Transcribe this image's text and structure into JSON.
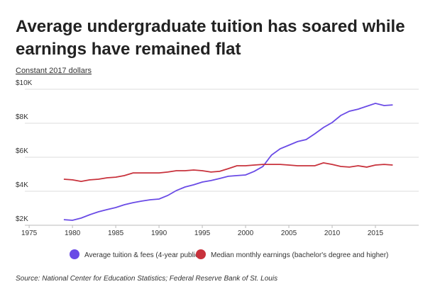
{
  "chart_data": {
    "type": "line",
    "title": "Average undergraduate tuition has soared while earnings have remained flat",
    "subtitle": "Constant 2017 dollars",
    "source": "Source: National Center for Education Statistics; Federal Reserve Bank of St. Louis",
    "x": [
      1979,
      1980,
      1981,
      1982,
      1983,
      1984,
      1985,
      1986,
      1987,
      1988,
      1989,
      1990,
      1991,
      1992,
      1993,
      1994,
      1995,
      1996,
      1997,
      1998,
      1999,
      2000,
      2001,
      2002,
      2003,
      2004,
      2005,
      2006,
      2007,
      2008,
      2009,
      2010,
      2011,
      2012,
      2013,
      2014,
      2015,
      2016,
      2017
    ],
    "series": [
      {
        "name": "Average tuition & fees (4-year public)",
        "color": "#6a4be6",
        "values": [
          2330,
          2290,
          2420,
          2620,
          2790,
          2920,
          3040,
          3210,
          3330,
          3420,
          3500,
          3540,
          3750,
          4040,
          4250,
          4380,
          4540,
          4630,
          4750,
          4880,
          4920,
          4960,
          5170,
          5460,
          6130,
          6500,
          6710,
          6920,
          7040,
          7380,
          7750,
          8040,
          8460,
          8710,
          8830,
          9000,
          9170,
          9040,
          9080
        ]
      },
      {
        "name": "Median monthly earnings (bachelor's degree and higher)",
        "color": "#c8323c",
        "values": [
          4710,
          4670,
          4580,
          4670,
          4710,
          4790,
          4830,
          4920,
          5080,
          5080,
          5080,
          5080,
          5130,
          5210,
          5210,
          5250,
          5210,
          5130,
          5170,
          5330,
          5500,
          5500,
          5540,
          5580,
          5580,
          5580,
          5540,
          5500,
          5500,
          5500,
          5670,
          5580,
          5460,
          5420,
          5500,
          5420,
          5540,
          5580,
          5540
        ]
      }
    ],
    "xlim": [
      1974.5,
      2020
    ],
    "xticks": [
      1975,
      1980,
      1985,
      1990,
      1995,
      2000,
      2005,
      2010,
      2015
    ],
    "ylim": [
      2000,
      10000
    ],
    "yticks": [
      {
        "value": 2000,
        "label": "$2K"
      },
      {
        "value": 4000,
        "label": "$4K"
      },
      {
        "value": 6000,
        "label": "$6K"
      },
      {
        "value": 8000,
        "label": "$8K"
      },
      {
        "value": 10000,
        "label": "$10K"
      }
    ],
    "grid": true
  }
}
